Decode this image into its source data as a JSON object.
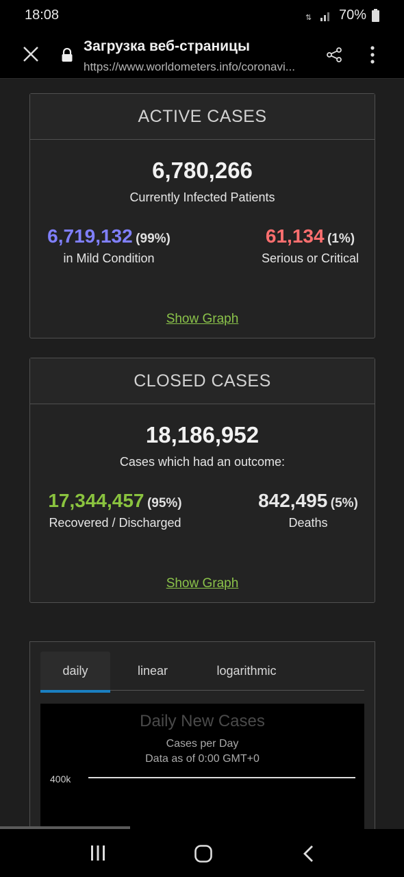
{
  "status": {
    "time": "18:08",
    "battery": "70%"
  },
  "browser": {
    "title": "Загрузка веб-страницы",
    "url": "https://www.worldometers.info/coronavi..."
  },
  "active": {
    "header": "ACTIVE CASES",
    "total": "6,780,266",
    "total_label": "Currently Infected Patients",
    "mild_value": "6,719,132",
    "mild_pct": "(99%)",
    "mild_label": "in Mild Condition",
    "serious_value": "61,134",
    "serious_pct": "(1%)",
    "serious_label": "Serious or Critical",
    "link": "Show Graph"
  },
  "closed": {
    "header": "CLOSED CASES",
    "total": "18,186,952",
    "total_label": "Cases which had an outcome:",
    "recovered_value": "17,344,457",
    "recovered_pct": "(95%)",
    "recovered_label": "Recovered / Discharged",
    "deaths_value": "842,495",
    "deaths_pct": "(5%)",
    "deaths_label": "Deaths",
    "link": "Show Graph"
  },
  "chart_tabs": [
    "daily",
    "linear",
    "logarithmic"
  ],
  "chart_data": {
    "type": "bar",
    "title": "Daily New Cases",
    "subtitle": "Cases per Day",
    "note": "Data as of 0:00 GMT+0",
    "y_ticks": [
      "400k"
    ]
  },
  "colors": {
    "mild": "#8080ff",
    "serious": "#ff6f6f",
    "recovered": "#8ac33f",
    "link": "#8bc34a",
    "tab_accent": "#1a7fc1"
  }
}
